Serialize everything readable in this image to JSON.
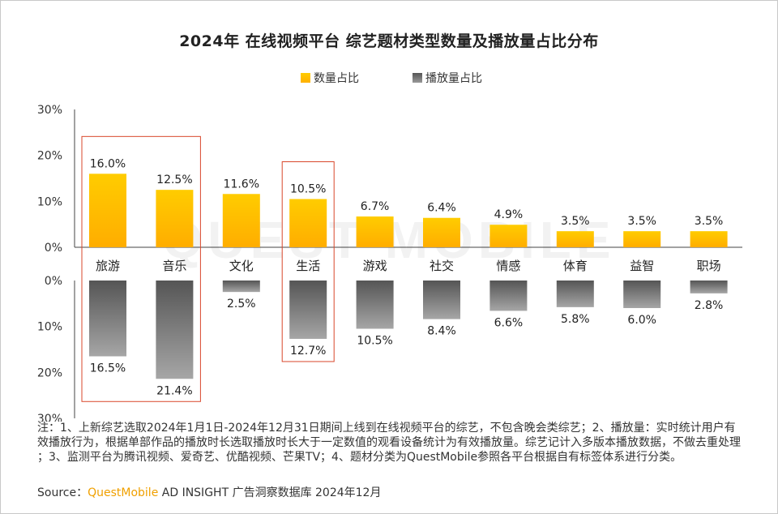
{
  "chart_data": {
    "type": "bar",
    "title": "2024年 在线视频平台 综艺题材类型数量及播放量占比分布",
    "categories": [
      "旅游",
      "音乐",
      "文化",
      "生活",
      "游戏",
      "社交",
      "情感",
      "体育",
      "益智",
      "职场"
    ],
    "series": [
      {
        "name": "数量占比",
        "color": "#ffc200",
        "values": [
          16.0,
          12.5,
          11.6,
          10.5,
          6.7,
          6.4,
          4.9,
          3.5,
          3.5,
          3.5
        ],
        "labels": [
          "16.0%",
          "12.5%",
          "11.6%",
          "10.5%",
          "6.7%",
          "6.4%",
          "4.9%",
          "3.5%",
          "3.5%",
          "3.5%"
        ]
      },
      {
        "name": "播放量占比",
        "color": "#707070",
        "values": [
          16.5,
          21.4,
          2.5,
          12.7,
          10.5,
          8.4,
          6.6,
          5.8,
          6.0,
          2.8
        ],
        "labels": [
          "16.5%",
          "21.4%",
          "2.5%",
          "12.7%",
          "10.5%",
          "8.4%",
          "6.6%",
          "5.8%",
          "6.0%",
          "2.8%"
        ]
      }
    ],
    "top_axis": {
      "ylim": [
        0,
        30
      ],
      "ticks": [
        "0%",
        "10%",
        "20%",
        "30%"
      ]
    },
    "bottom_axis": {
      "ylim": [
        0,
        30
      ],
      "ticks": [
        "0%",
        "10%",
        "20%",
        "30%"
      ]
    },
    "highlight_groups": [
      [
        "旅游",
        "音乐"
      ],
      [
        "生活"
      ]
    ],
    "highlight_color": "#d9472b"
  },
  "legend": {
    "count_label": "数量占比",
    "play_label": "播放量占比",
    "count_color": "#ffc200",
    "play_color": "#707070"
  },
  "watermark": "QUEST MOBILE",
  "note": "注：1、上新综艺选取2024年1月1日-2024年12月31日期间上线到在线视频平台的综艺，不包含晚会类综艺；2、播放量：实时统计用户有效播放行为，根据单部作品的播放时长选取播放时长大于一定数值的观看设备统计为有效播放量。综艺记计入多版本播放数据，不做去重处理 ；3、监测平台为腾讯视频、爱奇艺、优酷视频、芒果TV；4、题材分类为QuestMobile参照各平台根据自有标签体系进行分类。",
  "source": {
    "prefix": "Source：",
    "brand": "QuestMobile",
    "suffix": " AD INSIGHT 广告洞察数据库 2024年12月"
  }
}
